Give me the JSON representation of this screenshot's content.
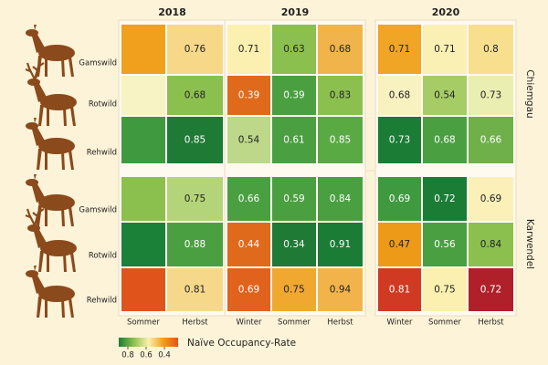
{
  "chart_data": {
    "type": "heatmap",
    "years": [
      "2018",
      "2019",
      "2020"
    ],
    "seasons": [
      [
        "Sommer",
        "Herbst"
      ],
      [
        "Winter",
        "Sommer",
        "Herbst"
      ],
      [
        "Winter",
        "Sommer",
        "Herbst"
      ]
    ],
    "regions": [
      {
        "name": "Chiemgau",
        "rows": [
          "Gamswild",
          "Rotwild",
          "Rehwild"
        ],
        "values": [
          [
            null,
            0.76,
            0.71,
            0.63,
            0.68,
            0.71,
            0.71,
            0.8
          ],
          [
            null,
            0.68,
            0.39,
            0.39,
            0.83,
            0.68,
            0.54,
            0.73
          ],
          [
            null,
            0.85,
            0.54,
            0.61,
            0.85,
            0.73,
            0.68,
            0.66
          ]
        ],
        "colors": [
          [
            "#f0a01c",
            "#f7d889",
            "#fbf0b0",
            "#8cc04e",
            "#f1b44a",
            "#f0a624",
            "#fbf0b4",
            "#f8df8e"
          ],
          [
            "#f7f3c4",
            "#8cc04e",
            "#e06a1c",
            "#4aa040",
            "#8cc04e",
            "#f8f1c0",
            "#a6cc66",
            "#eaeeb0"
          ],
          [
            "#3f9a3f",
            "#1f7a35",
            "#bcd888",
            "#4aa040",
            "#5aaa44",
            "#1b7c36",
            "#4aa040",
            "#6fb04a"
          ]
        ]
      },
      {
        "name": "Karwendel",
        "rows": [
          "Gamswild",
          "Rotwild",
          "Rehwild"
        ],
        "values": [
          [
            null,
            0.75,
            0.66,
            0.59,
            0.84,
            0.69,
            0.72,
            0.69
          ],
          [
            null,
            0.88,
            0.44,
            0.34,
            0.91,
            0.47,
            0.56,
            0.84
          ],
          [
            null,
            0.81,
            0.69,
            0.75,
            0.94,
            0.81,
            0.75,
            0.72
          ]
        ],
        "colors": [
          [
            "#8cc04e",
            "#b4d47a",
            "#4aa040",
            "#4aa040",
            "#4aa040",
            "#3f9a3f",
            "#1b7c36",
            "#fbf0b8"
          ],
          [
            "#1b8038",
            "#4aa040",
            "#e06a1c",
            "#1f7a35",
            "#1b7c36",
            "#ec9a18",
            "#4aa040",
            "#8cc04e"
          ],
          [
            "#e0541c",
            "#f5d88a",
            "#e0621c",
            "#f0a830",
            "#f2b44a",
            "#d03a22",
            "#fbf0b0",
            "#b0202a"
          ]
        ]
      }
    ],
    "colorbar": {
      "label": "Naïve Occupancy-Rate",
      "lim": [
        0.9,
        0.25
      ],
      "ticks": [
        0.8,
        0.6,
        0.4
      ],
      "colors": [
        "#1b7c36",
        "#8cc04e",
        "#fbf0b0",
        "#f0a01c",
        "#e0541c"
      ]
    }
  }
}
